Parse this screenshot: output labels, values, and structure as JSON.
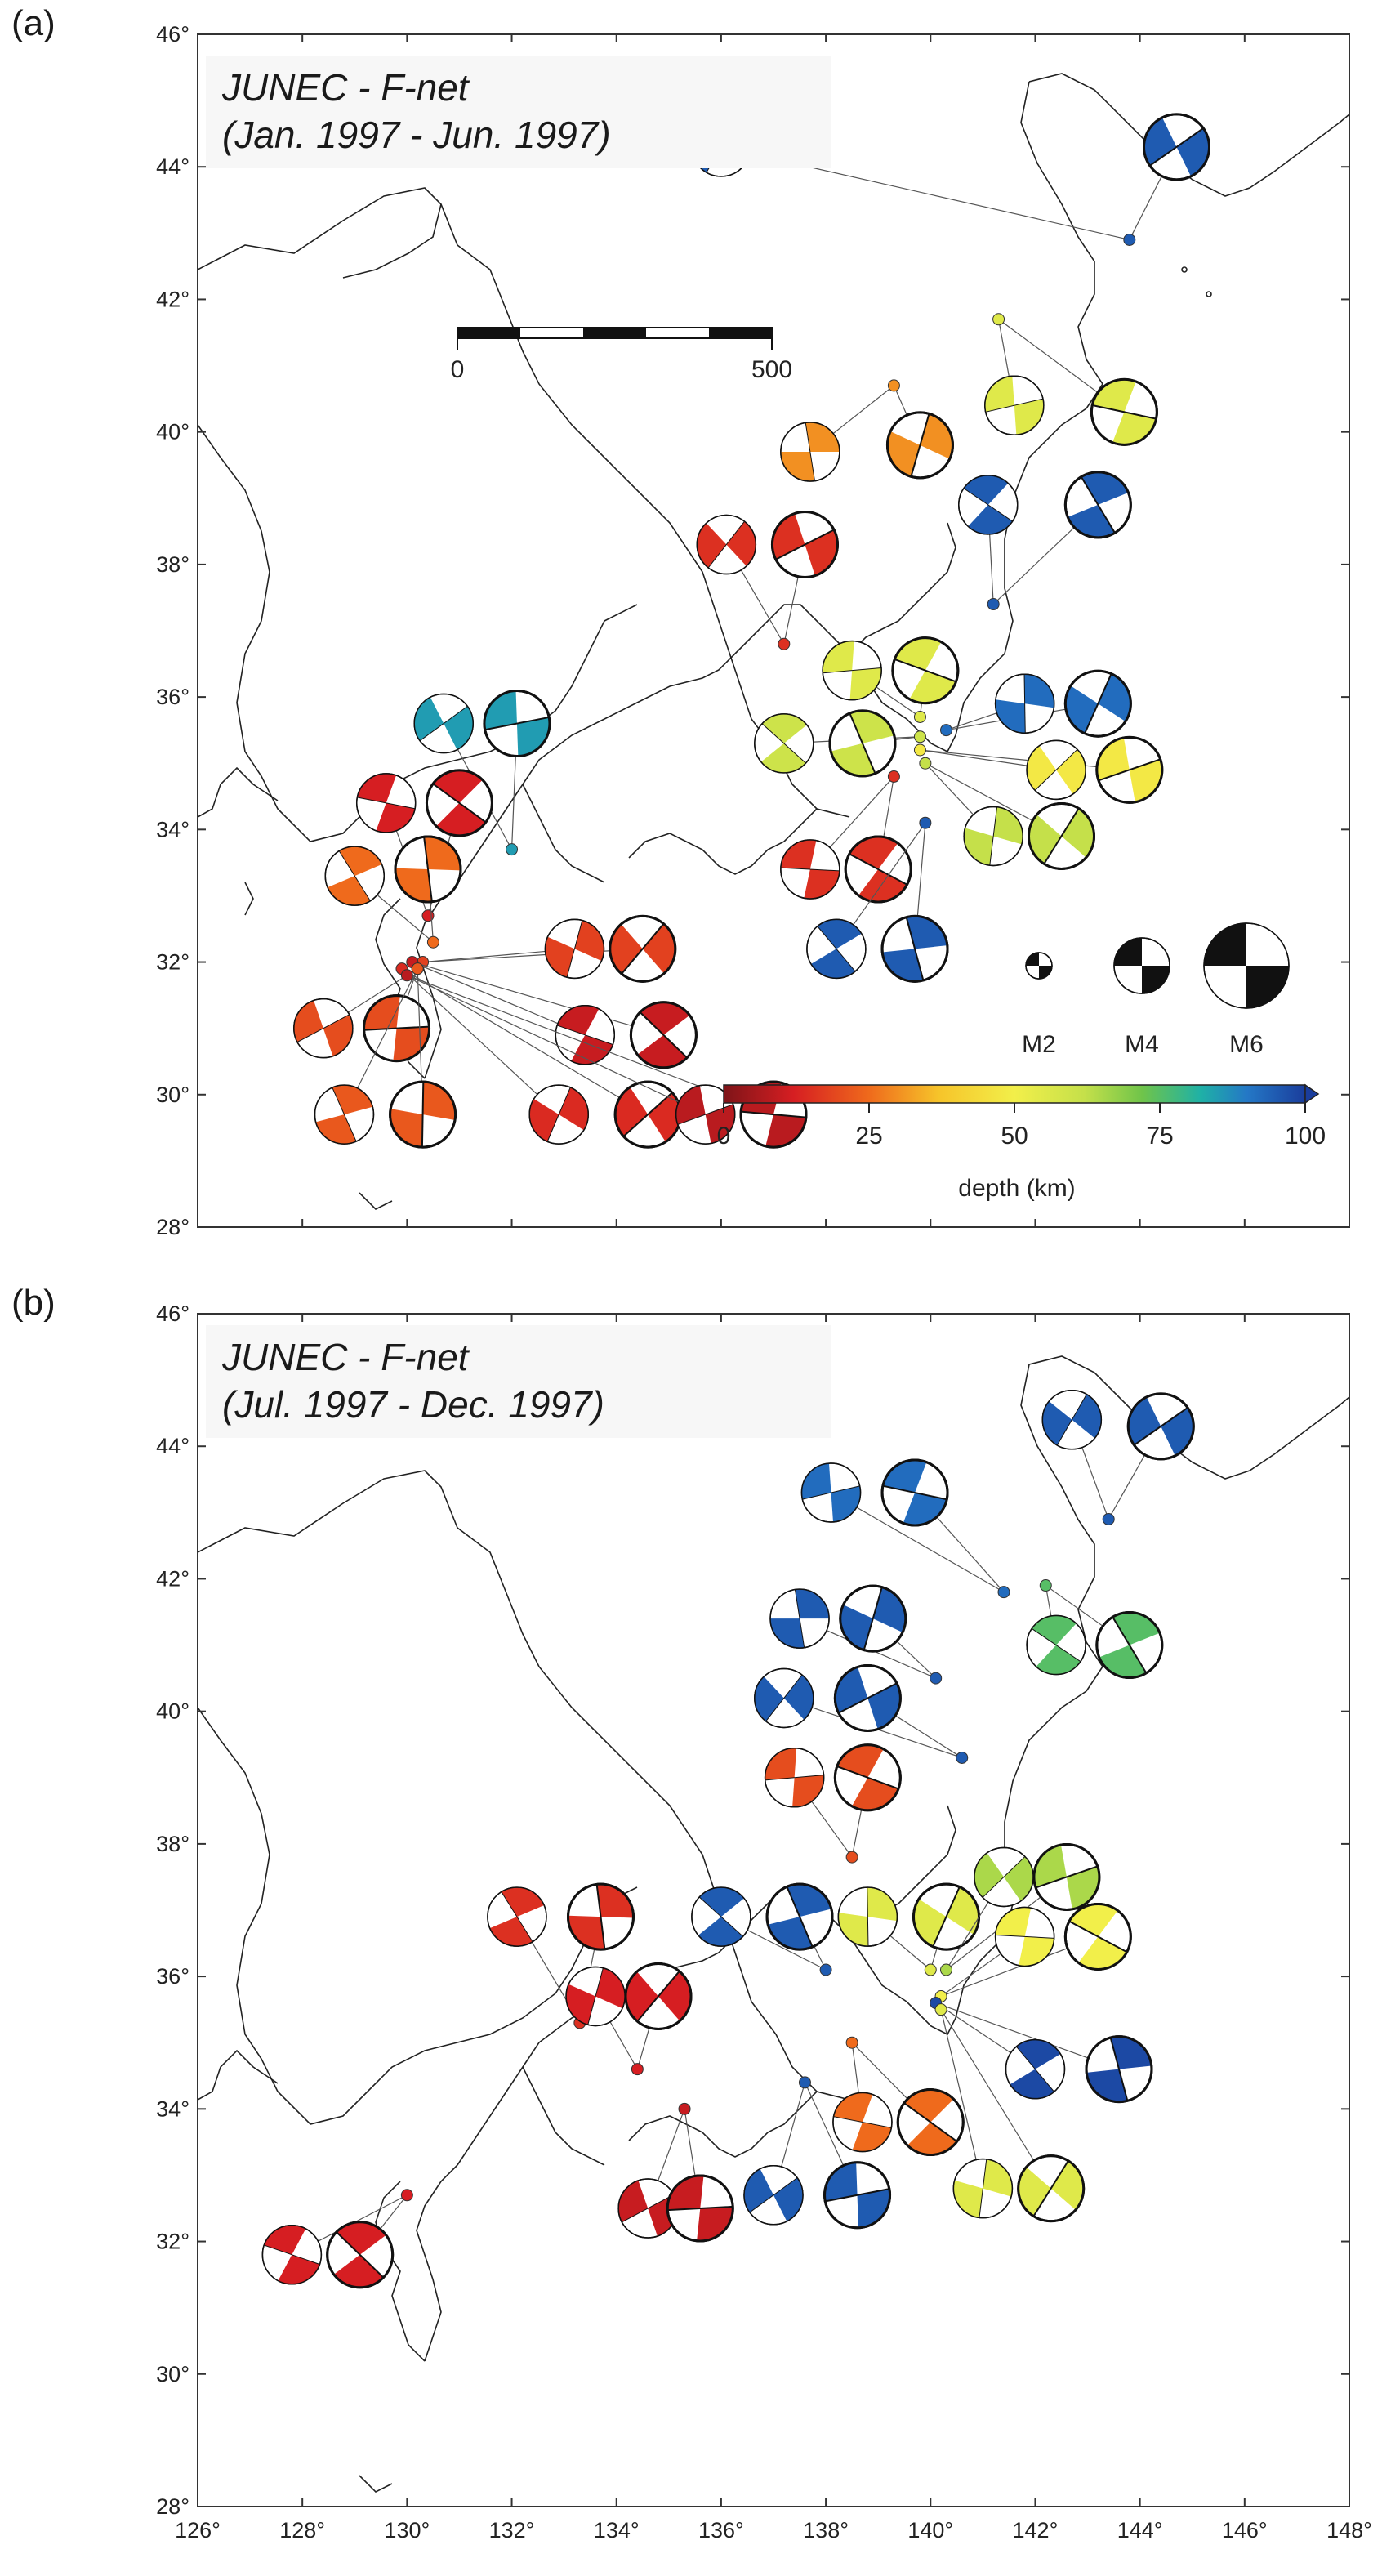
{
  "panels": [
    {
      "id": "a",
      "label": "(a)",
      "title_line1": "JUNEC - F-net",
      "title_line2": "(Jan. 1997 - Jun. 1997)",
      "lat_ticks": [
        "46°",
        "44°",
        "42°",
        "40°",
        "38°",
        "36°",
        "34°",
        "32°",
        "30°",
        "28°"
      ],
      "events": [
        {
          "lon": 143.8,
          "lat": 42.9,
          "depth": 95,
          "place": [
            [
              136,
              44.3
            ],
            [
              144.7,
              44.3
            ]
          ]
        },
        {
          "lon": 141.3,
          "lat": 41.7,
          "depth": 55,
          "place": [
            [
              141.6,
              40.4
            ],
            [
              143.7,
              40.3
            ]
          ]
        },
        {
          "lon": 141.2,
          "lat": 37.4,
          "depth": 95,
          "place": [
            [
              141.1,
              38.9
            ],
            [
              143.2,
              38.9
            ]
          ]
        },
        {
          "lon": 139.3,
          "lat": 40.7,
          "depth": 30,
          "place": [
            [
              137.7,
              39.7
            ],
            [
              139.8,
              39.8
            ]
          ]
        },
        {
          "lon": 137.2,
          "lat": 36.8,
          "depth": 15,
          "place": [
            [
              136.1,
              38.3
            ],
            [
              137.6,
              38.3
            ]
          ]
        },
        {
          "lon": 139.8,
          "lat": 35.7,
          "depth": 55,
          "place": [
            [
              138.5,
              36.4
            ],
            [
              139.9,
              36.4
            ]
          ]
        },
        {
          "lon": 139.8,
          "lat": 35.4,
          "depth": 60,
          "place": [
            [
              137.2,
              35.3
            ],
            [
              138.7,
              35.3
            ]
          ]
        },
        {
          "lon": 140.3,
          "lat": 35.5,
          "depth": 92,
          "place": [
            [
              141.8,
              35.9
            ],
            [
              143.2,
              35.9
            ]
          ]
        },
        {
          "lon": 139.8,
          "lat": 35.2,
          "depth": 48,
          "place": [
            [
              142.4,
              34.9
            ],
            [
              143.8,
              34.9
            ]
          ]
        },
        {
          "lon": 139.3,
          "lat": 34.8,
          "depth": 15,
          "place": [
            [
              137.7,
              33.4
            ],
            [
              139.0,
              33.4
            ]
          ]
        },
        {
          "lon": 139.9,
          "lat": 34.1,
          "depth": 95,
          "place": [
            [
              138.2,
              32.2
            ],
            [
              139.7,
              32.2
            ]
          ]
        },
        {
          "lon": 139.9,
          "lat": 35.0,
          "depth": 62,
          "place": [
            [
              141.2,
              33.9
            ],
            [
              142.5,
              33.9
            ]
          ]
        },
        {
          "lon": 132.0,
          "lat": 33.7,
          "depth": 85,
          "place": [
            [
              130.7,
              35.6
            ],
            [
              132.1,
              35.6
            ]
          ]
        },
        {
          "lon": 130.4,
          "lat": 32.7,
          "depth": 12,
          "place": [
            [
              129.6,
              34.4
            ],
            [
              131.0,
              34.4
            ]
          ]
        },
        {
          "lon": 130.5,
          "lat": 32.3,
          "depth": 25,
          "place": [
            [
              129.0,
              33.3
            ],
            [
              130.4,
              33.4
            ]
          ]
        },
        {
          "lon": 130.3,
          "lat": 32.0,
          "depth": 18,
          "place": [
            [
              133.2,
              32.2
            ],
            [
              134.5,
              32.2
            ]
          ]
        },
        {
          "lon": 130.2,
          "lat": 31.9,
          "depth": 20,
          "place": [
            [
              128.4,
              31.0
            ],
            [
              129.8,
              31.0
            ]
          ]
        },
        {
          "lon": 130.1,
          "lat": 32.0,
          "depth": 10,
          "place": [
            [
              133.4,
              30.9
            ],
            [
              134.9,
              30.9
            ]
          ]
        },
        {
          "lon": 130.2,
          "lat": 31.9,
          "depth": 22,
          "place": [
            [
              128.8,
              29.7
            ],
            [
              130.3,
              29.7
            ]
          ]
        },
        {
          "lon": 129.9,
          "lat": 31.9,
          "depth": 14,
          "place": [
            [
              132.9,
              29.7
            ],
            [
              134.6,
              29.7
            ]
          ]
        },
        {
          "lon": 130.0,
          "lat": 31.8,
          "depth": 8,
          "place": [
            [
              135.7,
              29.7
            ],
            [
              137.0,
              29.7
            ]
          ]
        }
      ],
      "scale_bar": {
        "start": "0",
        "end": "500"
      },
      "magnitude_legend": [
        "M2",
        "M4",
        "M6"
      ],
      "colorbar": {
        "ticks": [
          "0",
          "25",
          "50",
          "75",
          "100"
        ],
        "label": "depth (km)"
      }
    },
    {
      "id": "b",
      "label": "(b)",
      "title_line1": "JUNEC - F-net",
      "title_line2": "(Jul. 1997 - Dec. 1997)",
      "lat_ticks": [
        "46°",
        "44°",
        "42°",
        "40°",
        "38°",
        "36°",
        "34°",
        "32°",
        "30°",
        "28°"
      ],
      "lon_ticks": [
        "126°",
        "128°",
        "130°",
        "132°",
        "134°",
        "136°",
        "138°",
        "140°",
        "142°",
        "144°",
        "146°",
        "148°"
      ],
      "events": [
        {
          "lon": 143.4,
          "lat": 42.9,
          "depth": 95,
          "place": [
            [
              142.7,
              44.4
            ],
            [
              144.4,
              44.3
            ]
          ]
        },
        {
          "lon": 141.4,
          "lat": 41.8,
          "depth": 92,
          "place": [
            [
              138.1,
              43.3
            ],
            [
              139.7,
              43.3
            ]
          ]
        },
        {
          "lon": 142.2,
          "lat": 41.9,
          "depth": 75,
          "place": [
            [
              142.4,
              41.0
            ],
            [
              143.8,
              41.0
            ]
          ]
        },
        {
          "lon": 140.1,
          "lat": 40.5,
          "depth": 95,
          "place": [
            [
              137.5,
              41.4
            ],
            [
              138.9,
              41.4
            ]
          ]
        },
        {
          "lon": 140.6,
          "lat": 39.3,
          "depth": 95,
          "place": [
            [
              137.2,
              40.2
            ],
            [
              138.8,
              40.2
            ]
          ]
        },
        {
          "lon": 138.5,
          "lat": 37.8,
          "depth": 20,
          "place": [
            [
              137.4,
              39.0
            ],
            [
              138.8,
              39.0
            ]
          ]
        },
        {
          "lon": 138.0,
          "lat": 36.1,
          "depth": 95,
          "place": [
            [
              136.0,
              36.9
            ],
            [
              137.5,
              36.9
            ]
          ]
        },
        {
          "lon": 140.0,
          "lat": 36.1,
          "depth": 55,
          "place": [
            [
              138.8,
              36.9
            ],
            [
              140.3,
              36.9
            ]
          ]
        },
        {
          "lon": 140.3,
          "lat": 36.1,
          "depth": 65,
          "place": [
            [
              141.4,
              37.5
            ],
            [
              142.6,
              37.5
            ]
          ]
        },
        {
          "lon": 140.2,
          "lat": 35.7,
          "depth": 50,
          "place": [
            [
              141.8,
              36.6
            ],
            [
              143.2,
              36.6
            ]
          ]
        },
        {
          "lon": 140.1,
          "lat": 35.6,
          "depth": 98,
          "place": [
            [
              142.0,
              34.6
            ],
            [
              143.6,
              34.6
            ]
          ]
        },
        {
          "lon": 140.2,
          "lat": 35.5,
          "depth": 55,
          "place": [
            [
              141.0,
              32.8
            ],
            [
              142.3,
              32.8
            ]
          ]
        },
        {
          "lon": 137.6,
          "lat": 34.4,
          "depth": 95,
          "place": [
            [
              137.0,
              32.7
            ],
            [
              138.6,
              32.7
            ]
          ]
        },
        {
          "lon": 138.5,
          "lat": 35.0,
          "depth": 25,
          "place": [
            [
              138.7,
              33.8
            ],
            [
              140.0,
              33.8
            ]
          ]
        },
        {
          "lon": 133.3,
          "lat": 35.3,
          "depth": 15,
          "place": [
            [
              132.1,
              36.9
            ],
            [
              133.7,
              36.9
            ]
          ]
        },
        {
          "lon": 134.4,
          "lat": 34.6,
          "depth": 12,
          "place": [
            [
              133.6,
              35.7
            ],
            [
              134.8,
              35.7
            ]
          ]
        },
        {
          "lon": 135.3,
          "lat": 34.0,
          "depth": 10,
          "place": [
            [
              134.6,
              32.5
            ],
            [
              135.6,
              32.5
            ]
          ]
        },
        {
          "lon": 130.0,
          "lat": 32.7,
          "depth": 12,
          "place": [
            [
              127.8,
              31.8
            ],
            [
              129.1,
              31.8
            ]
          ]
        }
      ]
    }
  ]
}
